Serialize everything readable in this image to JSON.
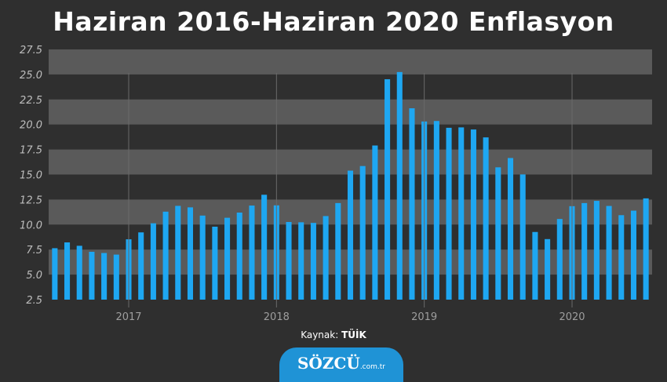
{
  "title": "Haziran 2016-Haziran 2020 Enflasyon",
  "source_label": "Kaynak:",
  "source_value": "TÜİK",
  "logo_main": "SÖZCÜ",
  "logo_sub": ".com.tr",
  "colors": {
    "background": "#2f2f2f",
    "band": "#5a5a5a",
    "bar": "#1ea7f2",
    "text": "#ffffff"
  },
  "chart_data": {
    "type": "bar",
    "title": "Haziran 2016-Haziran 2020 Enflasyon",
    "ylim": [
      2.5,
      27.5
    ],
    "yticks": [
      "2.5",
      "5.0",
      "7.5",
      "10.0",
      "12.5",
      "15.0",
      "17.5",
      "20.0",
      "22.5",
      "25.0",
      "27.5"
    ],
    "xticks": [
      {
        "label": "2017",
        "index": 6.5
      },
      {
        "label": "2018",
        "index": 18.5
      },
      {
        "label": "2019",
        "index": 30.5
      },
      {
        "label": "2020",
        "index": 42.5
      }
    ],
    "grid": "alternating horizontal bands",
    "series": [
      {
        "values": [
          7.64,
          8.22,
          7.88,
          7.28,
          7.16,
          7.0,
          8.53,
          9.22,
          10.13,
          11.29,
          11.87,
          11.72,
          10.9,
          9.79,
          10.68,
          11.2,
          11.9,
          12.98,
          11.92,
          10.26,
          10.23,
          10.17,
          10.85,
          12.15,
          15.39,
          15.85,
          17.9,
          24.52,
          25.24,
          21.62,
          20.3,
          20.35,
          19.67,
          19.71,
          19.5,
          18.71,
          15.72,
          16.65,
          15.01,
          9.26,
          8.55,
          10.56,
          11.84,
          12.15,
          12.37,
          11.86,
          10.94,
          11.39,
          12.62
        ]
      }
    ]
  }
}
